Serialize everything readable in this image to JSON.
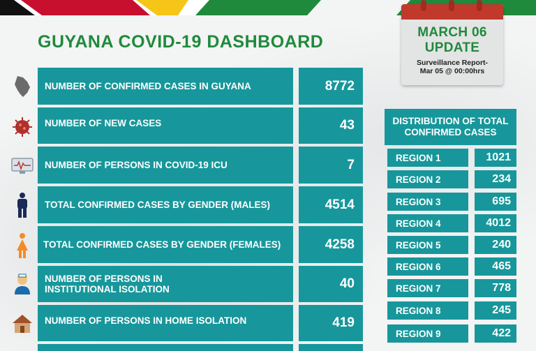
{
  "title": "GUYANA COVID-19 DASHBOARD",
  "update": {
    "date_line1": "MARCH 06",
    "date_line2": "UPDATE",
    "sub_line1": "Surveillance Report-",
    "sub_line2": "Mar 05 @ 00:00hrs"
  },
  "stats": [
    {
      "label": "NUMBER OF CONFIRMED CASES IN GUYANA",
      "value": "8772",
      "icon": "guyana-map-icon"
    },
    {
      "label": "NUMBER OF NEW CASES",
      "value": "43",
      "icon": "virus-icon"
    },
    {
      "label": "NUMBER OF PERSONS  IN COVID-19 ICU",
      "value": "7",
      "icon": "monitor-icon"
    },
    {
      "label": "TOTAL CONFIRMED CASES BY GENDER (MALES)",
      "value": "4514",
      "icon": "male-icon"
    },
    {
      "label": "TOTAL CONFIRMED CASES BY GENDER (FEMALES)",
      "value": "4258",
      "icon": "female-icon"
    },
    {
      "label": "NUMBER OF PERSONS IN INSTITUTIONAL ISOLATION",
      "value": "40",
      "icon": "nurse-icon"
    },
    {
      "label": "NUMBER OF PERSONS IN HOME ISOLATION",
      "value": "419",
      "icon": "house-icon"
    }
  ],
  "distribution": {
    "heading": "DISTRIBUTION OF TOTAL CONFIRMED CASES",
    "regions": [
      {
        "label": "REGION 1",
        "value": "1021"
      },
      {
        "label": "REGION 2",
        "value": "234"
      },
      {
        "label": "REGION 3",
        "value": "695"
      },
      {
        "label": "REGION 4",
        "value": "4012"
      },
      {
        "label": "REGION 5",
        "value": "240"
      },
      {
        "label": "REGION 6",
        "value": "465"
      },
      {
        "label": "REGION 7",
        "value": "778"
      },
      {
        "label": "REGION 8",
        "value": "245"
      },
      {
        "label": "REGION 9",
        "value": "422"
      }
    ]
  },
  "colors": {
    "teal": "#17979b",
    "green": "#1f8a3c",
    "red": "#c0392b",
    "yellow": "#f5c518"
  }
}
